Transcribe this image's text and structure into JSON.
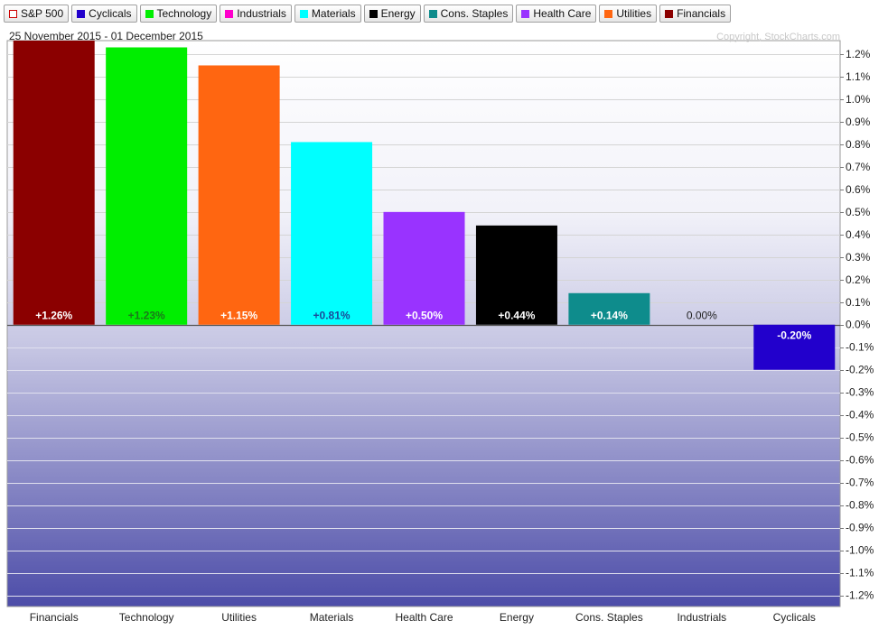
{
  "legend": [
    {
      "label": "S&P 500",
      "color": "#cc0000",
      "style": "outline"
    },
    {
      "label": "Cyclicals",
      "color": "#2200cc",
      "style": "fill"
    },
    {
      "label": "Technology",
      "color": "#00ee00",
      "style": "fill"
    },
    {
      "label": "Industrials",
      "color": "#ff00cc",
      "style": "fill"
    },
    {
      "label": "Materials",
      "color": "#00ffff",
      "style": "fill"
    },
    {
      "label": "Energy",
      "color": "#000000",
      "style": "fill"
    },
    {
      "label": "Cons. Staples",
      "color": "#0e8c8c",
      "style": "fill"
    },
    {
      "label": "Health Care",
      "color": "#9933ff",
      "style": "fill"
    },
    {
      "label": "Utilities",
      "color": "#ff6611",
      "style": "fill"
    },
    {
      "label": "Financials",
      "color": "#8b0000",
      "style": "fill"
    }
  ],
  "date_range": "25 November 2015 - 01 December 2015",
  "copyright": "Copyright, StockCharts.com",
  "chart_data": {
    "type": "bar",
    "categories": [
      "Financials",
      "Technology",
      "Utilities",
      "Materials",
      "Health Care",
      "Energy",
      "Cons. Staples",
      "Industrials",
      "Cyclicals"
    ],
    "values": [
      1.26,
      1.23,
      1.15,
      0.81,
      0.5,
      0.44,
      0.14,
      0.0,
      -0.2
    ],
    "data_labels": [
      "+1.26%",
      "+1.23%",
      "+1.15%",
      "+0.81%",
      "+0.50%",
      "+0.44%",
      "+0.14%",
      "0.00%",
      "-0.20%"
    ],
    "colors": [
      "#8b0000",
      "#00ee00",
      "#ff6611",
      "#00ffff",
      "#9933ff",
      "#000000",
      "#0e8c8c",
      "#ff00cc",
      "#2200cc"
    ],
    "label_colors": [
      "#ffffff",
      "#1a7a1a",
      "#ffffff",
      "#1a4a99",
      "#ffffff",
      "#ffffff",
      "#ffffff",
      "#222222",
      "#ffffff"
    ],
    "y_ticks": [
      "1.2%",
      "1.1%",
      "1.0%",
      "0.9%",
      "0.8%",
      "0.7%",
      "0.6%",
      "0.5%",
      "0.4%",
      "0.3%",
      "0.2%",
      "0.1%",
      "0.0%",
      "-0.1%",
      "-0.2%",
      "-0.3%",
      "-0.4%",
      "-0.5%",
      "-0.6%",
      "-0.7%",
      "-0.8%",
      "-0.9%",
      "-1.0%",
      "-1.1%",
      "-1.2%"
    ],
    "y_tick_values": [
      1.2,
      1.1,
      1.0,
      0.9,
      0.8,
      0.7,
      0.6,
      0.5,
      0.4,
      0.3,
      0.2,
      0.1,
      0.0,
      -0.1,
      -0.2,
      -0.3,
      -0.4,
      -0.5,
      -0.6,
      -0.7,
      -0.8,
      -0.9,
      -1.0,
      -1.1,
      -1.2
    ],
    "ylim": [
      -1.25,
      1.26
    ],
    "y_axis_position": "right",
    "grid": true
  }
}
